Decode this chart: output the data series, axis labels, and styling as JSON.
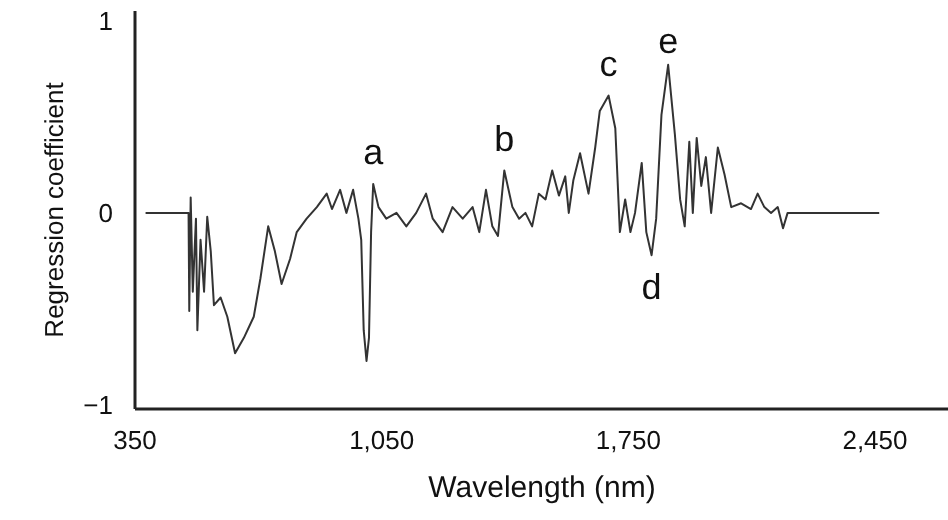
{
  "chart_data": {
    "type": "line",
    "xlabel": "Wavelength (nm)",
    "ylabel": "Regression coefficient",
    "x": [
      380,
      502,
      504,
      508,
      514,
      523,
      527,
      536,
      546,
      555,
      565,
      574,
      593,
      612,
      634,
      659,
      687,
      706,
      728,
      747,
      766,
      790,
      809,
      837,
      866,
      894,
      909,
      932,
      950,
      969,
      984,
      992,
      999,
      1007,
      1014,
      1020,
      1026,
      1041,
      1063,
      1092,
      1120,
      1148,
      1176,
      1195,
      1223,
      1251,
      1280,
      1308,
      1327,
      1346,
      1364,
      1380,
      1398,
      1421,
      1440,
      1458,
      1477,
      1496,
      1515,
      1534,
      1553,
      1571,
      1581,
      1594,
      1613,
      1637,
      1656,
      1669,
      1694,
      1713,
      1726,
      1741,
      1756,
      1769,
      1788,
      1801,
      1816,
      1829,
      1844,
      1863,
      1882,
      1897,
      1910,
      1923,
      1933,
      1944,
      1957,
      1970,
      1985,
      2004,
      2023,
      2042,
      2070,
      2098,
      2117,
      2136,
      2155,
      2174,
      2189,
      2202,
      2462
    ],
    "series": [
      {
        "color": "#333333",
        "values": [
          0,
          0,
          -0.51,
          0.08,
          -0.41,
          -0.03,
          -0.61,
          -0.14,
          -0.41,
          -0.02,
          -0.2,
          -0.48,
          -0.44,
          -0.54,
          -0.73,
          -0.65,
          -0.54,
          -0.34,
          -0.07,
          -0.2,
          -0.37,
          -0.24,
          -0.1,
          -0.03,
          0.03,
          0.1,
          0.02,
          0.12,
          0,
          0.12,
          -0.03,
          -0.14,
          -0.61,
          -0.77,
          -0.65,
          -0.1,
          0.15,
          0.03,
          -0.03,
          0,
          -0.07,
          0,
          0.1,
          -0.03,
          -0.1,
          0.03,
          -0.03,
          0.03,
          -0.1,
          0.12,
          -0.07,
          -0.12,
          0.22,
          0.03,
          -0.03,
          0,
          -0.07,
          0.1,
          0.07,
          0.22,
          0.09,
          0.19,
          0,
          0.17,
          0.31,
          0.1,
          0.34,
          0.53,
          0.61,
          0.44,
          -0.1,
          0.07,
          -0.1,
          0,
          0.26,
          -0.1,
          -0.22,
          -0.03,
          0.51,
          0.77,
          0.41,
          0.07,
          -0.07,
          0.37,
          0,
          0.39,
          0.14,
          0.29,
          0,
          0.34,
          0.2,
          0.03,
          0.05,
          0.02,
          0.1,
          0.03,
          0,
          0.03,
          -0.08,
          0,
          0
        ]
      }
    ],
    "xlim": [
      350,
      2660
    ],
    "ylim": [
      -1.02,
      1.05
    ],
    "xticks": [
      350,
      {
        "value": 1050,
        "label": "1,050"
      },
      {
        "value": 1750,
        "label": "1,750"
      },
      {
        "value": 2450,
        "label": "2,450"
      }
    ],
    "yticks": [
      {
        "value": -1,
        "label": "−1"
      },
      0,
      1
    ],
    "grid": false,
    "annotations": [
      {
        "text": "a",
        "x": 1026,
        "y": 0.15
      },
      {
        "text": "b",
        "x": 1398,
        "y": 0.22
      },
      {
        "text": "c",
        "x": 1694,
        "y": 0.61
      },
      {
        "text": "d",
        "x": 1816,
        "y": -0.22
      },
      {
        "text": "e",
        "x": 1863,
        "y": 0.77
      }
    ]
  }
}
